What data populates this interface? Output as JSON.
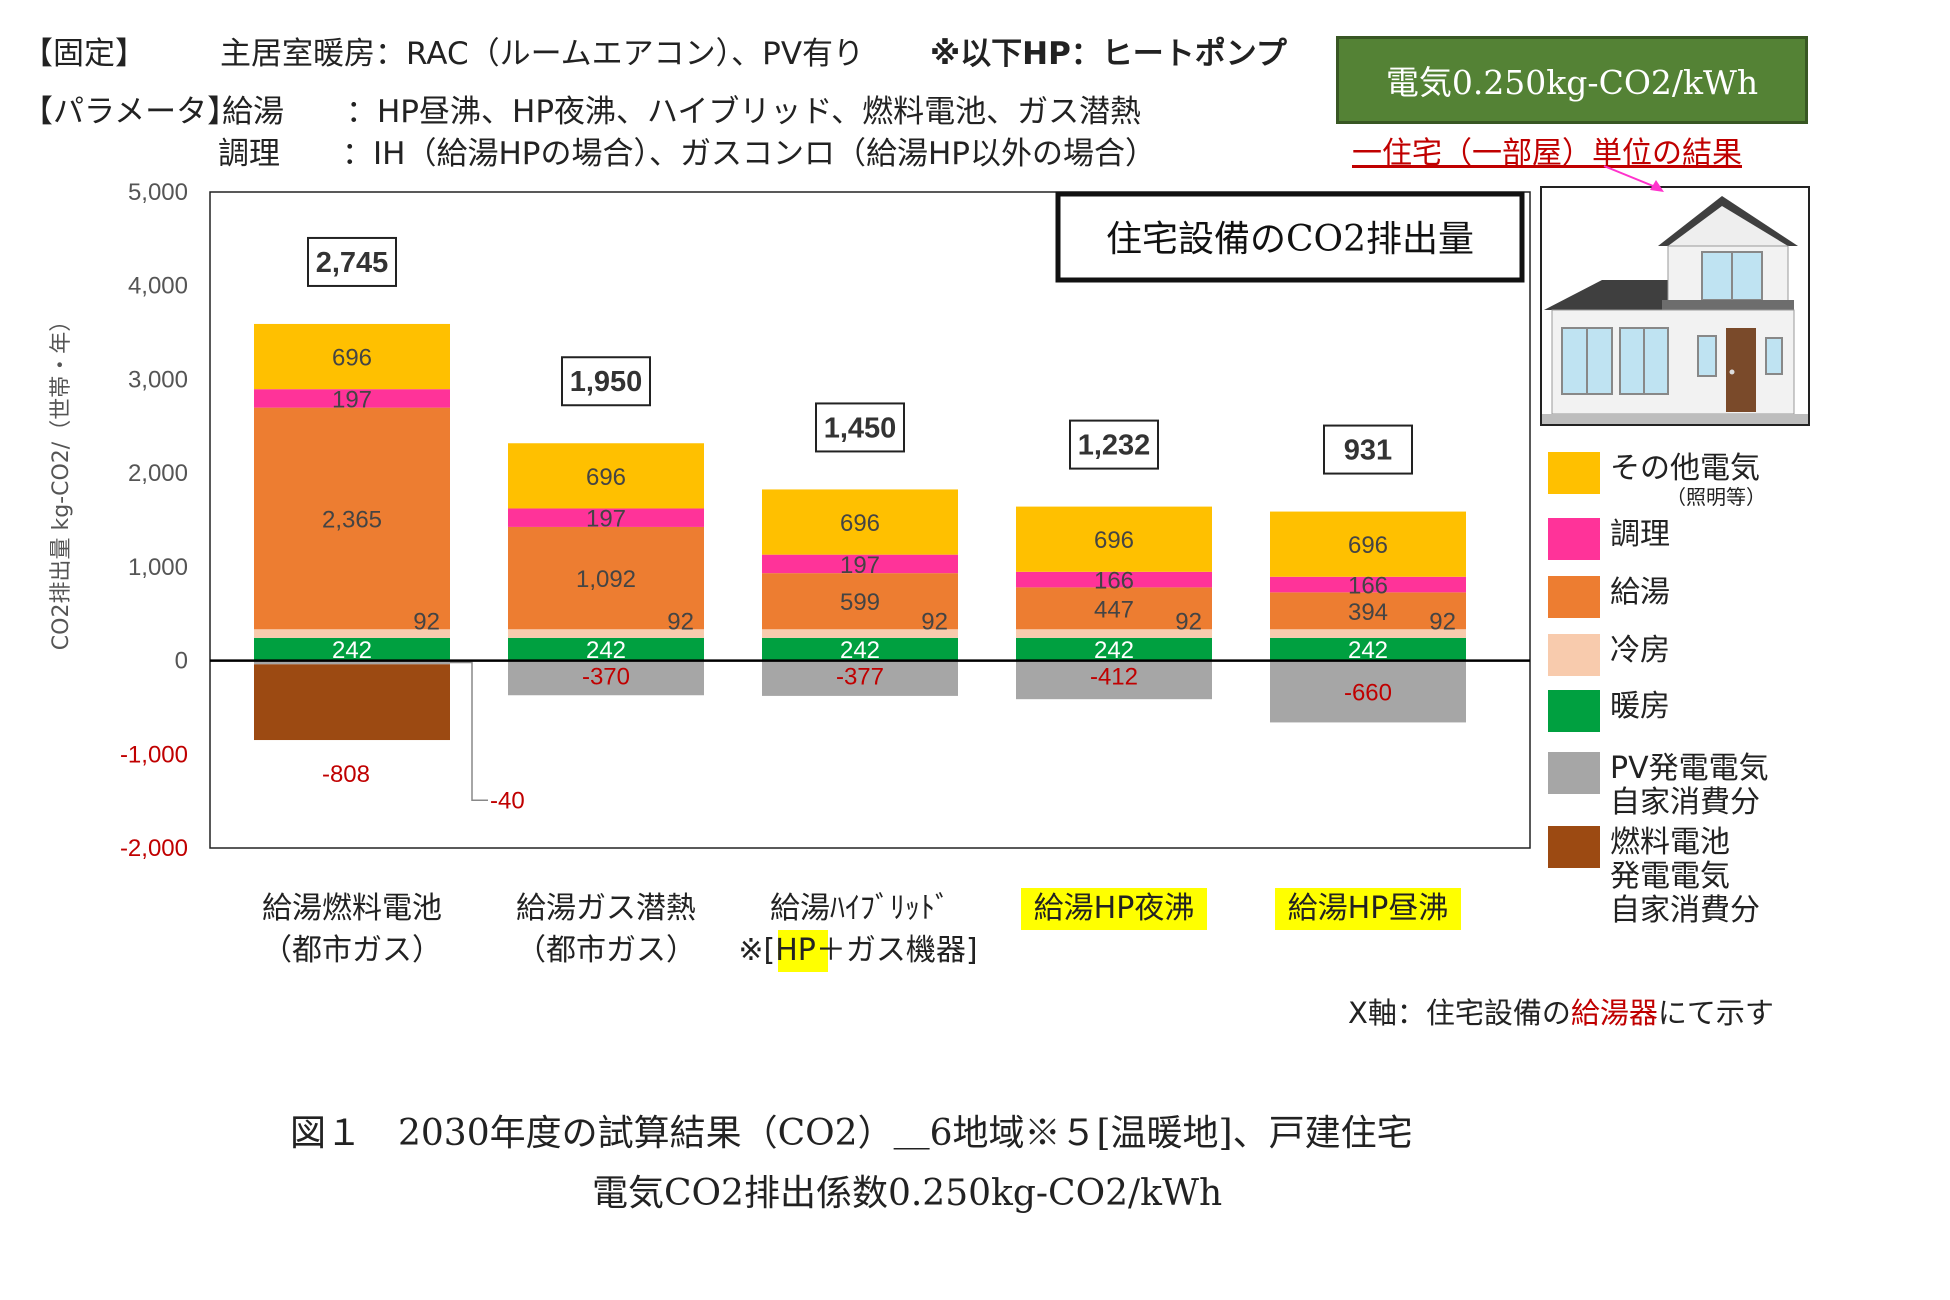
{
  "header": {
    "fixed_label": "【固定】",
    "fixed_text": "主居室暖房：RAC（ルームエアコン）、PV有り",
    "hp_note": "※以下HP：ヒートポンプ",
    "param_label": "【パラメータ】",
    "param_hot_water": "給湯　　：HP昼沸、HP夜沸、ハイブリッド、燃料電池、ガス潜熱",
    "param_cooking": "調理　　：IH（給湯HPの場合）、ガスコンロ（給湯HP以外の場合）"
  },
  "emission_factor_box": "電気0.250kg-CO2/kWh",
  "unit_note": "一住宅（一部屋）単位の結果",
  "x_axis_note_prefix": "X軸：住宅設備の",
  "x_axis_note_highlight": "給湯器",
  "x_axis_note_suffix": "にて示す",
  "caption_line1": "図１　2030年度の試算結果（CO2）＿6地域※５[温暖地]、戸建住宅",
  "caption_line2": "電気CO2排出係数0.250kg-CO2/kWh",
  "colors": {
    "other_electric": "#ffc000",
    "cooking": "#ff3399",
    "hot_water": "#ed7d31",
    "cooling": "#f8cbad",
    "heating": "#00a040",
    "pv": "#a6a6a6",
    "fuel_cell": "#9c4a12",
    "negative_text": "#c00000",
    "highlight": "#ffff00"
  },
  "chart_data": {
    "type": "bar",
    "stacked": true,
    "title": "住宅設備のCO2排出量",
    "ylabel": "CO2排出量 kg-CO2/（世帯・年）",
    "ylim": [
      -2000,
      5000
    ],
    "y_ticks": [
      "-2,000",
      "-1,000",
      "0",
      "1,000",
      "2,000",
      "3,000",
      "4,000",
      "5,000"
    ],
    "y_tick_values": [
      -2000,
      -1000,
      0,
      1000,
      2000,
      3000,
      4000,
      5000
    ],
    "categories": [
      {
        "line1": "給湯燃料電池",
        "line2": "（都市ガス）",
        "highlight": false
      },
      {
        "line1": "給湯ガス潜熱",
        "line2": "（都市ガス）",
        "highlight": false
      },
      {
        "line1": "給湯ﾊｲﾌﾞﾘｯﾄﾞ",
        "line2_prefix": "※[",
        "line2_hl": "HP",
        "line2_suffix": "＋ガス機器]",
        "highlight": false
      },
      {
        "line1": "給湯HP夜沸",
        "line2": "",
        "highlight": true
      },
      {
        "line1": "給湯HP昼沸",
        "line2": "",
        "highlight": true
      }
    ],
    "totals": [
      2745,
      1950,
      1450,
      1232,
      931
    ],
    "total_labels": [
      "2,745",
      "1,950",
      "1,450",
      "1,232",
      "931"
    ],
    "series": [
      {
        "name": "暖房",
        "key": "heating",
        "values": [
          242,
          242,
          242,
          242,
          242
        ],
        "labels": [
          "242",
          "242",
          "242",
          "242",
          "242"
        ]
      },
      {
        "name": "冷房",
        "key": "cooling",
        "values": [
          92,
          92,
          92,
          92,
          92
        ],
        "labels": [
          "92",
          "92",
          "92",
          "92",
          "92"
        ]
      },
      {
        "name": "給湯",
        "key": "hot_water",
        "values": [
          2365,
          1092,
          599,
          447,
          394
        ],
        "labels": [
          "2,365",
          "1,092",
          "599",
          "447",
          "394"
        ]
      },
      {
        "name": "調理",
        "key": "cooking",
        "values": [
          197,
          197,
          197,
          166,
          166
        ],
        "labels": [
          "197",
          "197",
          "197",
          "166",
          "166"
        ]
      },
      {
        "name": "その他電気",
        "key": "other_electric",
        "values": [
          696,
          696,
          696,
          696,
          696
        ],
        "labels": [
          "696",
          "696",
          "696",
          "696",
          "696"
        ]
      },
      {
        "name": "PV発電電気自家消費分",
        "key": "pv",
        "values": [
          -40,
          -370,
          -377,
          -412,
          -660
        ],
        "labels": [
          "-40",
          "-370",
          "-377",
          "-412",
          "-660"
        ]
      },
      {
        "name": "燃料電池発電電気自家消費分",
        "key": "fuel_cell",
        "values": [
          -808,
          0,
          0,
          0,
          0
        ],
        "labels": [
          "-808",
          "",
          "",
          "",
          ""
        ]
      }
    ],
    "legend": [
      {
        "key": "other_electric",
        "label": "その他電気",
        "sub": "（照明等）"
      },
      {
        "key": "cooking",
        "label": "調理",
        "sub": ""
      },
      {
        "key": "hot_water",
        "label": "給湯",
        "sub": ""
      },
      {
        "key": "cooling",
        "label": "冷房",
        "sub": ""
      },
      {
        "key": "heating",
        "label": "暖房",
        "sub": ""
      },
      {
        "key": "pv",
        "label": "PV発電電気\n自家消費分",
        "sub": ""
      },
      {
        "key": "fuel_cell",
        "label": "燃料電池\n発電電気\n自家消費分",
        "sub": ""
      }
    ]
  }
}
